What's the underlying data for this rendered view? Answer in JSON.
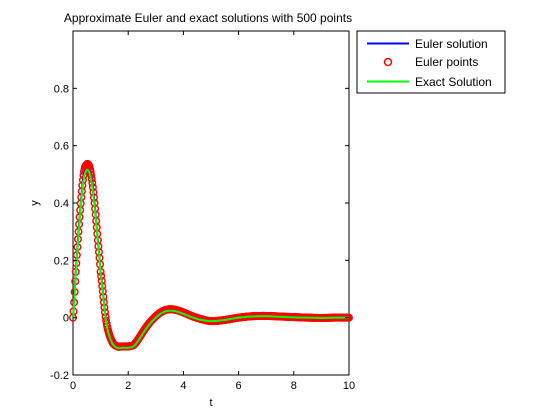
{
  "chart_data": {
    "type": "line",
    "title": "Approximate Euler and exact solutions with 500 points",
    "xlabel": "t",
    "ylabel": "y",
    "xlim": [
      0,
      10
    ],
    "ylim": [
      -0.2,
      1.0
    ],
    "xticks": [
      0,
      2,
      4,
      6,
      8,
      10
    ],
    "yticks": [
      -0.2,
      0,
      0.2,
      0.4,
      0.6,
      0.8
    ],
    "grid": false,
    "legend_position": "top-right",
    "x": [
      0,
      0.1,
      0.2,
      0.3,
      0.4,
      0.5,
      0.6,
      0.7,
      0.8,
      0.9,
      1.0,
      1.2,
      1.4,
      1.6,
      1.8,
      2.0,
      2.2,
      2.4,
      2.6,
      2.8,
      3.0,
      3.2,
      3.4,
      3.6,
      3.8,
      4.0,
      4.3,
      4.6,
      5.0,
      5.5,
      6.0,
      6.5,
      7.0,
      7.5,
      8.0,
      8.5,
      9.0,
      9.5,
      10.0
    ],
    "series": [
      {
        "name": "Euler solution",
        "color": "#0000ff",
        "style": "line",
        "values": [
          0,
          0.16,
          0.3,
          0.42,
          0.51,
          0.535,
          0.525,
          0.47,
          0.38,
          0.27,
          0.16,
          -0.01,
          -0.08,
          -0.1,
          -0.1,
          -0.1,
          -0.095,
          -0.07,
          -0.04,
          -0.015,
          0.005,
          0.02,
          0.028,
          0.029,
          0.025,
          0.018,
          0.006,
          -0.004,
          -0.012,
          -0.008,
          0.0,
          0.005,
          0.006,
          0.004,
          0.002,
          0.0,
          -0.001,
          0.0,
          0.0
        ]
      },
      {
        "name": "Euler points",
        "color": "#ff0000",
        "style": "circle-markers",
        "values": [
          0,
          0.16,
          0.3,
          0.42,
          0.51,
          0.535,
          0.525,
          0.47,
          0.38,
          0.27,
          0.16,
          -0.01,
          -0.08,
          -0.1,
          -0.1,
          -0.1,
          -0.095,
          -0.07,
          -0.04,
          -0.015,
          0.005,
          0.02,
          0.028,
          0.029,
          0.025,
          0.018,
          0.006,
          -0.004,
          -0.012,
          -0.008,
          0.0,
          0.005,
          0.006,
          0.004,
          0.002,
          0.0,
          -0.001,
          0.0,
          0.0
        ]
      },
      {
        "name": "Exact Solution",
        "color": "#00ff00",
        "style": "line",
        "values": [
          0,
          0.15,
          0.29,
          0.41,
          0.49,
          0.515,
          0.505,
          0.455,
          0.37,
          0.265,
          0.155,
          -0.015,
          -0.085,
          -0.105,
          -0.105,
          -0.105,
          -0.1,
          -0.075,
          -0.045,
          -0.02,
          0.0,
          0.015,
          0.023,
          0.024,
          0.02,
          0.013,
          0.002,
          -0.007,
          -0.012,
          -0.008,
          0.0,
          0.004,
          0.005,
          0.003,
          0.001,
          0.0,
          -0.001,
          0.0,
          0.0
        ]
      }
    ]
  }
}
